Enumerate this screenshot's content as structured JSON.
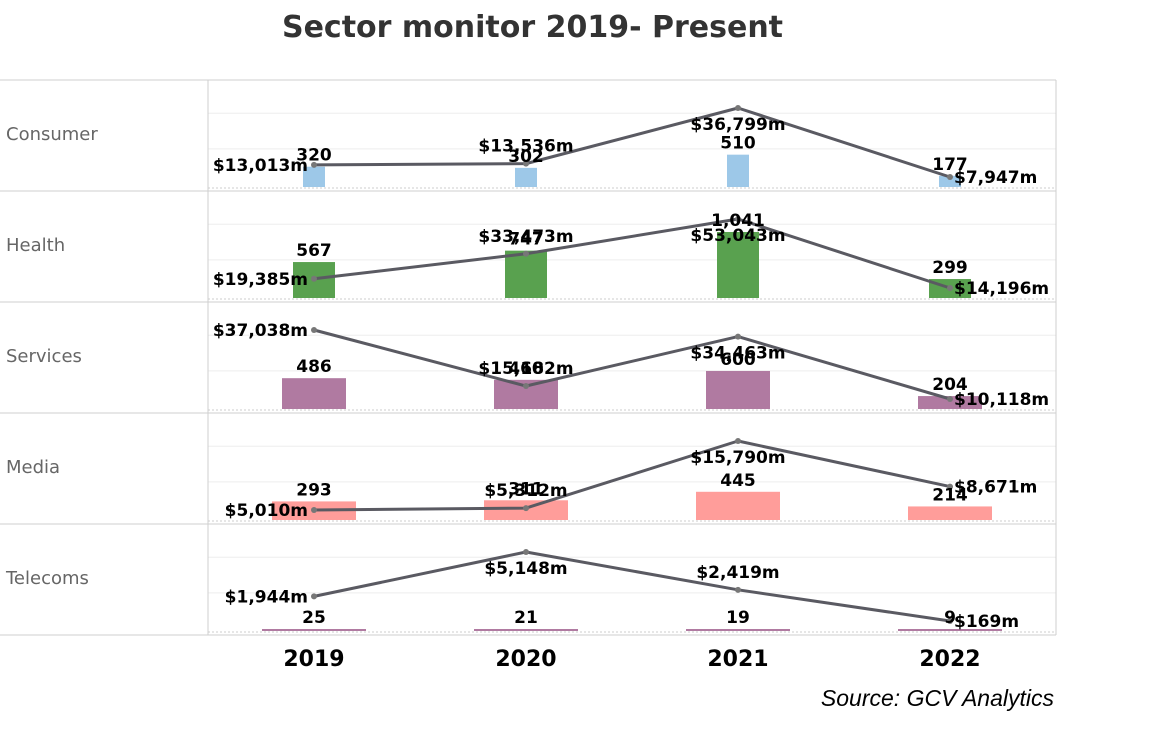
{
  "chart_data": {
    "type": "bar",
    "title": "Sector monitor 2019- Present",
    "source": "Source: GCV Analytics",
    "categories": [
      "2019",
      "2020",
      "2021",
      "2022"
    ],
    "bar_measure_note": "",
    "panels": [
      {
        "name": "Consumer",
        "color": "#9dc8e8",
        "counts": [
          320,
          302,
          510,
          177
        ],
        "count_labels": [
          "320",
          "302",
          "510",
          "177"
        ],
        "amounts": [
          13013,
          13536,
          36799,
          7947
        ],
        "amount_labels": [
          "$13,013m",
          "$13,536m",
          "$36,799m",
          "$7,947m"
        ]
      },
      {
        "name": "Health",
        "color": "#59a14f",
        "counts": [
          567,
          747,
          1041,
          299
        ],
        "count_labels": [
          "567",
          "747",
          "1,041",
          "299"
        ],
        "amounts": [
          19385,
          33473,
          53043,
          14196
        ],
        "amount_labels": [
          "$19,385m",
          "$33,473m",
          "$53,043m",
          "$14,196m"
        ]
      },
      {
        "name": "Services",
        "color": "#b07aa1",
        "counts": [
          486,
          460,
          600,
          204
        ],
        "count_labels": [
          "486",
          "460",
          "600",
          "204"
        ],
        "amounts": [
          37038,
          15182,
          34463,
          10118
        ],
        "amount_labels": [
          "$37,038m",
          "$15,182m",
          "$34,463m",
          "$10,118m"
        ]
      },
      {
        "name": "Media",
        "color": "#ff9d9a",
        "counts": [
          293,
          311,
          445,
          214
        ],
        "count_labels": [
          "293",
          "311",
          "445",
          "214"
        ],
        "amounts": [
          5010,
          5312,
          15790,
          8671
        ],
        "amount_labels": [
          "$5,010m",
          "$5,312m",
          "$15,790m",
          "$8,671m"
        ]
      },
      {
        "name": "Telecoms",
        "color": "#b07aa1",
        "counts": [
          25,
          21,
          19,
          9
        ],
        "count_labels": [
          "25",
          "21",
          "19",
          "9"
        ],
        "amounts": [
          1944,
          5148,
          2419,
          169
        ],
        "amount_labels": [
          "$1,944m",
          "$5,148m",
          "$2,419m",
          "$169m"
        ]
      }
    ],
    "line_color": "#5a5a62",
    "grid": true,
    "legend": "none"
  }
}
